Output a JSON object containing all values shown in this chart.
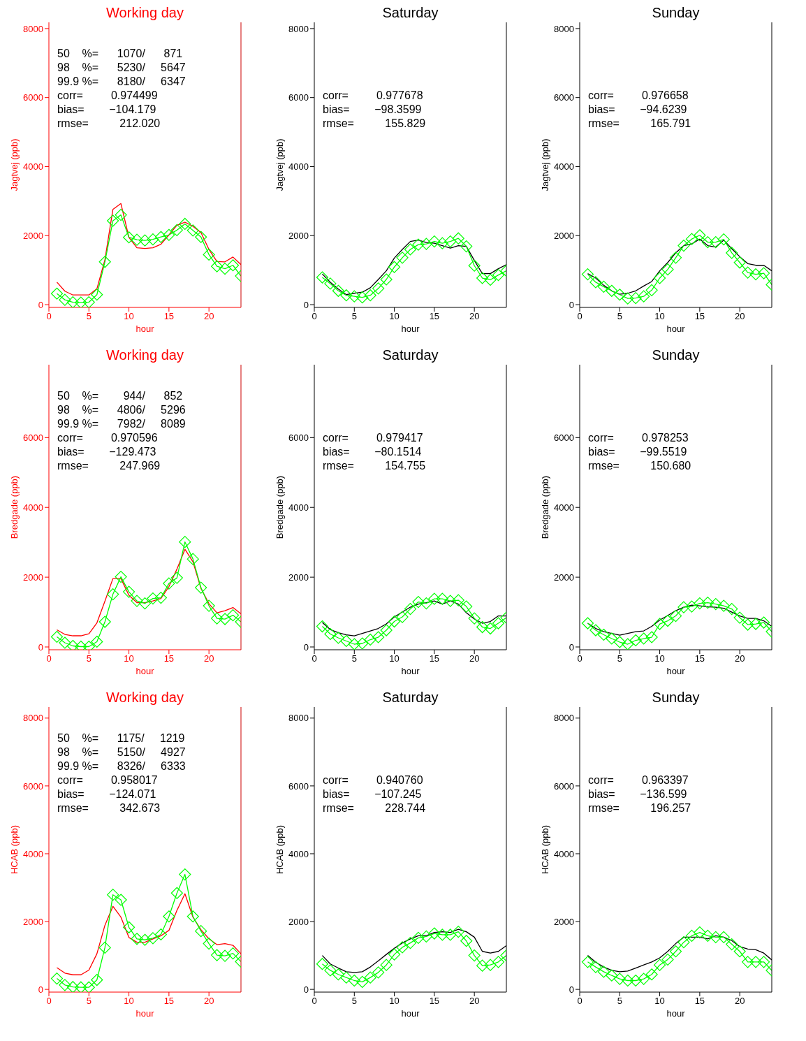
{
  "chart_data": [
    {
      "type": "line",
      "title": "Working day",
      "xlabel": "hour",
      "ylabel": "Jagtvej (ppb)",
      "x": [
        1,
        2,
        3,
        4,
        5,
        6,
        7,
        8,
        9,
        10,
        11,
        12,
        13,
        14,
        15,
        16,
        17,
        18,
        19,
        20,
        21,
        22,
        23,
        24
      ],
      "xlim": [
        0,
        24
      ],
      "xticks": [
        0,
        5,
        10,
        15,
        20
      ],
      "ylim": [
        -80,
        8180
      ],
      "yticks": [
        0,
        2000,
        4000,
        6000,
        8000
      ],
      "annotations": [
        "50    %=      1070/      871",
        "98    %=      5230/     5647",
        "99.9 %=      8180/     6347",
        "corr=         0.974499",
        "bias=        −104.179",
        "rmse=          212.020"
      ],
      "series": [
        {
          "color": "#ff0000",
          "marker": "none",
          "values": [
            650,
            390,
            280,
            280,
            280,
            460,
            1300,
            2760,
            2930,
            1950,
            1650,
            1630,
            1650,
            1750,
            2020,
            2300,
            2390,
            2270,
            2090,
            1600,
            1250,
            1240,
            1380,
            1160
          ]
        },
        {
          "color": "#00ff00",
          "marker": "diamond",
          "values": [
            320,
            140,
            70,
            60,
            70,
            290,
            1240,
            2430,
            2600,
            1950,
            1880,
            1860,
            1890,
            1960,
            2020,
            2160,
            2340,
            2150,
            1960,
            1450,
            1110,
            1040,
            1140,
            830
          ]
        }
      ]
    },
    {
      "type": "line",
      "title": "Saturday",
      "xlabel": "hour",
      "ylabel": "Jagtvej (ppb)",
      "x": [
        1,
        2,
        3,
        4,
        5,
        6,
        7,
        8,
        9,
        10,
        11,
        12,
        13,
        14,
        15,
        16,
        17,
        18,
        19,
        20,
        21,
        22,
        23,
        24
      ],
      "xlim": [
        0,
        24
      ],
      "xticks": [
        0,
        5,
        10,
        15,
        20
      ],
      "ylim": [
        -80,
        8180
      ],
      "yticks": [
        0,
        2000,
        4000,
        6000,
        8000
      ],
      "annotations": [
        "corr=         0.977678",
        "bias=        −98.3599",
        "rmse=          155.829"
      ],
      "series": [
        {
          "color": "#000000",
          "marker": "none",
          "values": [
            890,
            650,
            450,
            290,
            330,
            360,
            490,
            730,
            980,
            1350,
            1600,
            1830,
            1870,
            1800,
            1780,
            1710,
            1640,
            1710,
            1690,
            1280,
            900,
            900,
            1040,
            1160
          ]
        },
        {
          "color": "#00ff00",
          "marker": "diamond",
          "values": [
            790,
            610,
            400,
            270,
            240,
            210,
            270,
            470,
            730,
            1090,
            1360,
            1600,
            1740,
            1760,
            1830,
            1780,
            1830,
            1920,
            1690,
            1130,
            770,
            720,
            860,
            980
          ]
        }
      ]
    },
    {
      "type": "line",
      "title": "Sunday",
      "xlabel": "hour",
      "ylabel": "Jagtvej (ppb)",
      "x": [
        1,
        2,
        3,
        4,
        5,
        6,
        7,
        8,
        9,
        10,
        11,
        12,
        13,
        14,
        15,
        16,
        17,
        18,
        19,
        20,
        21,
        22,
        23,
        24
      ],
      "xlim": [
        0,
        24
      ],
      "xticks": [
        0,
        5,
        10,
        15,
        20
      ],
      "ylim": [
        -80,
        8180
      ],
      "yticks": [
        0,
        2000,
        4000,
        6000,
        8000
      ],
      "annotations": [
        "corr=         0.976658",
        "bias=        −94.6239",
        "rmse=          165.791"
      ],
      "series": [
        {
          "color": "#000000",
          "marker": "none",
          "values": [
            900,
            770,
            560,
            400,
            300,
            330,
            400,
            540,
            670,
            980,
            1220,
            1500,
            1710,
            1760,
            1900,
            1710,
            1670,
            1870,
            1620,
            1390,
            1190,
            1140,
            1140,
            980
          ]
        },
        {
          "color": "#00ff00",
          "marker": "diamond",
          "values": [
            880,
            650,
            520,
            400,
            290,
            180,
            190,
            240,
            420,
            770,
            1020,
            1360,
            1710,
            1900,
            2010,
            1810,
            1810,
            1890,
            1500,
            1220,
            930,
            880,
            910,
            580
          ]
        }
      ]
    },
    {
      "type": "line",
      "title": "Working day",
      "xlabel": "hour",
      "ylabel": "Bredgade (ppb)",
      "x": [
        1,
        2,
        3,
        4,
        5,
        6,
        7,
        8,
        9,
        10,
        11,
        12,
        13,
        14,
        15,
        16,
        17,
        18,
        19,
        20,
        21,
        22,
        23,
        24
      ],
      "xlim": [
        0,
        24
      ],
      "xticks": [
        0,
        5,
        10,
        15,
        20
      ],
      "ylim": [
        -80,
        8089
      ],
      "yticks": [
        0,
        2000,
        4000,
        6000
      ],
      "annotations": [
        "50    %=        944/      852",
        "98    %=      4806/     5296",
        "99.9 %=      7982/     8089",
        "corr=         0.970596",
        "bias=        −129.473",
        "rmse=          247.969"
      ],
      "series": [
        {
          "color": "#ff0000",
          "marker": "none",
          "values": [
            490,
            360,
            320,
            320,
            380,
            690,
            1310,
            1960,
            1960,
            1480,
            1270,
            1270,
            1320,
            1390,
            1730,
            2230,
            2800,
            2440,
            1680,
            1240,
            980,
            1040,
            1130,
            950
          ]
        },
        {
          "color": "#00ff00",
          "marker": "diamond",
          "values": [
            290,
            120,
            30,
            10,
            10,
            150,
            720,
            1510,
            2010,
            1580,
            1320,
            1250,
            1390,
            1410,
            1820,
            1980,
            3010,
            2520,
            1700,
            1180,
            820,
            800,
            910,
            720
          ]
        }
      ]
    },
    {
      "type": "line",
      "title": "Saturday",
      "xlabel": "hour",
      "ylabel": "Bredgade (ppb)",
      "x": [
        1,
        2,
        3,
        4,
        5,
        6,
        7,
        8,
        9,
        10,
        11,
        12,
        13,
        14,
        15,
        16,
        17,
        18,
        19,
        20,
        21,
        22,
        23,
        24
      ],
      "xlim": [
        0,
        24
      ],
      "xticks": [
        0,
        5,
        10,
        15,
        20
      ],
      "ylim": [
        -80,
        8089
      ],
      "yticks": [
        0,
        2000,
        4000,
        6000
      ],
      "annotations": [
        "corr=         0.979417",
        "bias=        −80.1514",
        "rmse=          154.755"
      ],
      "series": [
        {
          "color": "#000000",
          "marker": "none",
          "values": [
            700,
            500,
            410,
            350,
            320,
            390,
            460,
            530,
            660,
            860,
            1000,
            1140,
            1230,
            1270,
            1320,
            1230,
            1320,
            1230,
            980,
            800,
            680,
            730,
            890,
            890
          ]
        },
        {
          "color": "#00ff00",
          "marker": "diamond",
          "values": [
            590,
            370,
            260,
            170,
            80,
            100,
            210,
            280,
            480,
            730,
            860,
            1090,
            1290,
            1250,
            1380,
            1380,
            1320,
            1340,
            1160,
            820,
            570,
            530,
            680,
            840
          ]
        }
      ]
    },
    {
      "type": "line",
      "title": "Sunday",
      "xlabel": "hour",
      "ylabel": "Bredgade (ppb)",
      "x": [
        1,
        2,
        3,
        4,
        5,
        6,
        7,
        8,
        9,
        10,
        11,
        12,
        13,
        14,
        15,
        16,
        17,
        18,
        19,
        20,
        21,
        22,
        23,
        24
      ],
      "xlim": [
        0,
        24
      ],
      "xticks": [
        0,
        5,
        10,
        15,
        20
      ],
      "ylim": [
        -80,
        8089
      ],
      "yticks": [
        0,
        2000,
        4000,
        6000
      ],
      "annotations": [
        "corr=         0.978253",
        "bias=        −99.5519",
        "rmse=          150.680"
      ],
      "series": [
        {
          "color": "#000000",
          "marker": "none",
          "values": [
            680,
            530,
            440,
            390,
            340,
            390,
            440,
            460,
            590,
            770,
            900,
            1040,
            1140,
            1200,
            1180,
            1150,
            1140,
            1110,
            1000,
            890,
            820,
            820,
            750,
            590
          ]
        },
        {
          "color": "#00ff00",
          "marker": "diamond",
          "values": [
            680,
            480,
            350,
            240,
            140,
            80,
            190,
            240,
            280,
            660,
            750,
            890,
            1140,
            1160,
            1250,
            1270,
            1230,
            1180,
            1090,
            840,
            640,
            660,
            700,
            440
          ]
        }
      ]
    },
    {
      "type": "line",
      "title": "Working day",
      "xlabel": "hour",
      "ylabel": "HCAB (ppb)",
      "x": [
        1,
        2,
        3,
        4,
        5,
        6,
        7,
        8,
        9,
        10,
        11,
        12,
        13,
        14,
        15,
        16,
        17,
        18,
        19,
        20,
        21,
        22,
        23,
        24
      ],
      "xlim": [
        0,
        24
      ],
      "xticks": [
        0,
        5,
        10,
        15,
        20
      ],
      "ylim": [
        -80,
        8326
      ],
      "yticks": [
        0,
        2000,
        4000,
        6000,
        8000
      ],
      "annotations": [
        "50    %=      1175/     1219",
        "98    %=      5150/     4927",
        "99.9 %=      8326/     6333",
        "corr=         0.958017",
        "bias=        −124.071",
        "rmse=          342.673"
      ],
      "series": [
        {
          "color": "#ff0000",
          "marker": "none",
          "values": [
            640,
            480,
            430,
            430,
            570,
            1050,
            1890,
            2450,
            2130,
            1530,
            1390,
            1390,
            1490,
            1580,
            1740,
            2330,
            2820,
            2130,
            1760,
            1490,
            1320,
            1350,
            1300,
            1050
          ]
        },
        {
          "color": "#00ff00",
          "marker": "diamond",
          "values": [
            320,
            130,
            70,
            60,
            60,
            280,
            1230,
            2790,
            2640,
            1830,
            1490,
            1460,
            1510,
            1620,
            2150,
            2840,
            3390,
            2150,
            1720,
            1350,
            1010,
            990,
            1060,
            820
          ]
        }
      ]
    },
    {
      "type": "line",
      "title": "Saturday",
      "xlabel": "hour",
      "ylabel": "HCAB (ppb)",
      "x": [
        1,
        2,
        3,
        4,
        5,
        6,
        7,
        8,
        9,
        10,
        11,
        12,
        13,
        14,
        15,
        16,
        17,
        18,
        19,
        20,
        21,
        22,
        23,
        24
      ],
      "xlim": [
        0,
        24
      ],
      "xticks": [
        0,
        5,
        10,
        15,
        20
      ],
      "ylim": [
        -80,
        8326
      ],
      "yticks": [
        0,
        2000,
        4000,
        6000,
        8000
      ],
      "annotations": [
        "corr=         0.940760",
        "bias=        −107.245",
        "rmse=          228.744"
      ],
      "series": [
        {
          "color": "#000000",
          "marker": "none",
          "values": [
            1000,
            750,
            630,
            520,
            500,
            520,
            660,
            840,
            1030,
            1210,
            1370,
            1490,
            1580,
            1580,
            1680,
            1700,
            1680,
            1770,
            1700,
            1540,
            1120,
            1070,
            1120,
            1290
          ]
        },
        {
          "color": "#00ff00",
          "marker": "diamond",
          "values": [
            750,
            560,
            440,
            350,
            260,
            220,
            350,
            500,
            720,
            1030,
            1240,
            1370,
            1520,
            1560,
            1650,
            1610,
            1610,
            1700,
            1430,
            1000,
            700,
            720,
            810,
            1000
          ]
        }
      ]
    },
    {
      "type": "line",
      "title": "Sunday",
      "xlabel": "hour",
      "ylabel": "HCAB (ppb)",
      "x": [
        1,
        2,
        3,
        4,
        5,
        6,
        7,
        8,
        9,
        10,
        11,
        12,
        13,
        14,
        15,
        16,
        17,
        18,
        19,
        20,
        21,
        22,
        23,
        24
      ],
      "xlim": [
        0,
        24
      ],
      "xticks": [
        0,
        5,
        10,
        15,
        20
      ],
      "ylim": [
        -80,
        8326
      ],
      "yticks": [
        0,
        2000,
        4000,
        6000,
        8000
      ],
      "annotations": [
        "corr=         0.963397",
        "bias=        −136.599",
        "rmse=          196.257"
      ],
      "series": [
        {
          "color": "#000000",
          "marker": "none",
          "values": [
            1000,
            800,
            660,
            560,
            520,
            540,
            630,
            720,
            810,
            930,
            1120,
            1350,
            1540,
            1540,
            1540,
            1490,
            1580,
            1540,
            1440,
            1260,
            1190,
            1170,
            1070,
            870
          ]
        },
        {
          "color": "#00ff00",
          "marker": "diamond",
          "values": [
            810,
            660,
            520,
            410,
            310,
            260,
            260,
            310,
            440,
            720,
            880,
            1120,
            1390,
            1580,
            1680,
            1580,
            1540,
            1540,
            1330,
            1120,
            810,
            810,
            810,
            560
          ]
        }
      ]
    }
  ]
}
